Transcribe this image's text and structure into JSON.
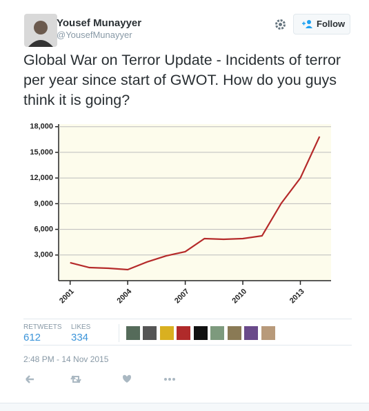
{
  "user": {
    "name": "Yousef Munayyer",
    "handle": "@YousefMunayyer"
  },
  "follow": "Follow",
  "text": "Global War on Terror Update - Incidents of terror per year since start of GWOT. How do you guys think it is going?",
  "stats": [
    {
      "label": "RETWEETS",
      "value": 612
    },
    {
      "label": "LIKES",
      "value": 334
    }
  ],
  "timestamp": "2:48 PM - 14 Nov 2015",
  "chart_data": {
    "type": "line",
    "x": [
      2001,
      2002,
      2003,
      2004,
      2005,
      2006,
      2007,
      2008,
      2009,
      2010,
      2011,
      2012,
      2013,
      2014
    ],
    "series": [
      {
        "color": "#b52a2a",
        "values": [
          2100,
          1530,
          1450,
          1290,
          2180,
          2900,
          3390,
          4920,
          4840,
          4920,
          5240,
          9030,
          12000,
          16850
        ]
      }
    ],
    "xlim": [
      2000.4,
      2014.6
    ],
    "xticks": [
      2001,
      2004,
      2007,
      2010,
      2013
    ],
    "ylim": [
      0,
      18300
    ],
    "yticks": [
      {
        "value": 3000,
        "label": "3,000"
      },
      {
        "value": 6000,
        "label": "6,000"
      },
      {
        "value": 9000,
        "label": "9,000"
      },
      {
        "value": 12000,
        "label": "12,000"
      },
      {
        "value": 15000,
        "label": "15,000"
      },
      {
        "value": 18000,
        "label": "18,000"
      }
    ],
    "grid": true
  }
}
